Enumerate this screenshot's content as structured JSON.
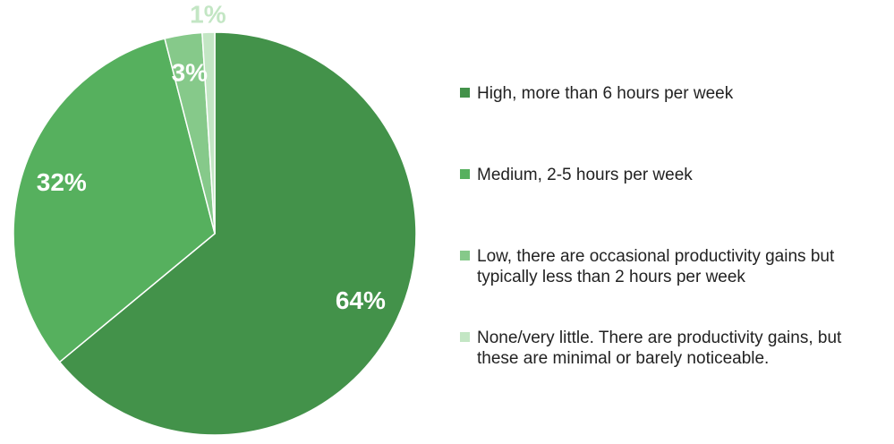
{
  "chart_data": {
    "type": "pie",
    "categories": [
      "High, more than 6 hours per week",
      "Medium, 2-5 hours per week",
      "Low, there are occasional productivity gains but typically less than 2 hours per week",
      "None/very little. There are productivity gains, but these are minimal or barely noticeable."
    ],
    "values": [
      64,
      32,
      3,
      1
    ],
    "value_labels": [
      "64%",
      "32%",
      "3%",
      "1%"
    ],
    "colors": [
      "#43924a",
      "#56b05e",
      "#86c98a",
      "#c3e6c4"
    ]
  }
}
